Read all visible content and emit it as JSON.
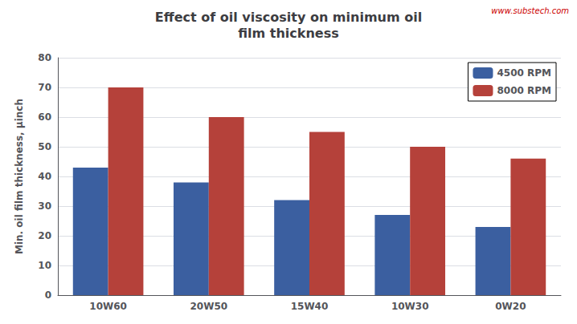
{
  "chart_data": {
    "type": "bar",
    "title": "Effect of oil viscosity on minimum oil\nfilm thickness",
    "ylabel": "Min. oil film thickness, μinch",
    "categories": [
      "10W60",
      "20W50",
      "15W40",
      "10W30",
      "0W20"
    ],
    "series": [
      {
        "name": "4500 RPM",
        "color": "#3b5fa0",
        "values": [
          43,
          38,
          32,
          27,
          23
        ]
      },
      {
        "name": "8000 RPM",
        "color": "#b5413a",
        "values": [
          70,
          60,
          55,
          50,
          46
        ]
      }
    ],
    "ylim": [
      0,
      80
    ],
    "yticks": [
      0,
      10,
      20,
      30,
      40,
      50,
      60,
      70,
      80
    ],
    "grid": true,
    "legend": "upper right",
    "annotations": [
      {
        "text": "www.substech.com",
        "color": "#cc0000"
      }
    ]
  }
}
